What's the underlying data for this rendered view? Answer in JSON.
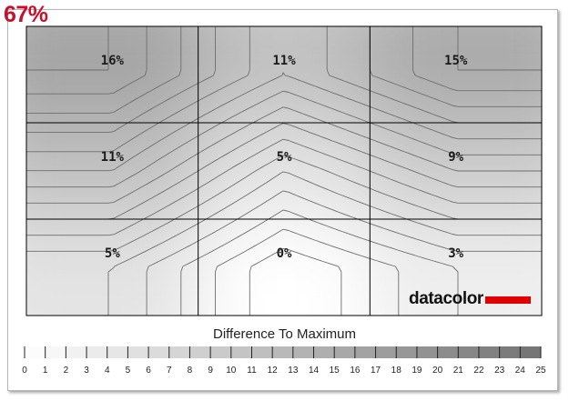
{
  "score": "67%",
  "chart_data": {
    "type": "heatmap",
    "title": "Difference To Maximum",
    "grid": {
      "rows": 3,
      "cols": 3
    },
    "cells": [
      [
        "16%",
        "11%",
        "15%"
      ],
      [
        "11%",
        "5%",
        "9%"
      ],
      [
        "5%",
        "0%",
        "3%"
      ]
    ],
    "values": [
      [
        16,
        11,
        15
      ],
      [
        11,
        5,
        9
      ],
      [
        5,
        0,
        3
      ]
    ],
    "scale": {
      "min": 0,
      "max": 25,
      "ticks": [
        "0",
        "1",
        "2",
        "3",
        "4",
        "5",
        "6",
        "7",
        "8",
        "9",
        "10",
        "11",
        "12",
        "13",
        "14",
        "15",
        "16",
        "17",
        "18",
        "19",
        "20",
        "21",
        "22",
        "23",
        "24",
        "25"
      ]
    },
    "brand": "datacolor",
    "colors": {
      "low": "#ffffff",
      "high": "#8c8c8c",
      "brand_bar": "#e00000",
      "score": "#c8102e",
      "grid": "#000000"
    }
  }
}
